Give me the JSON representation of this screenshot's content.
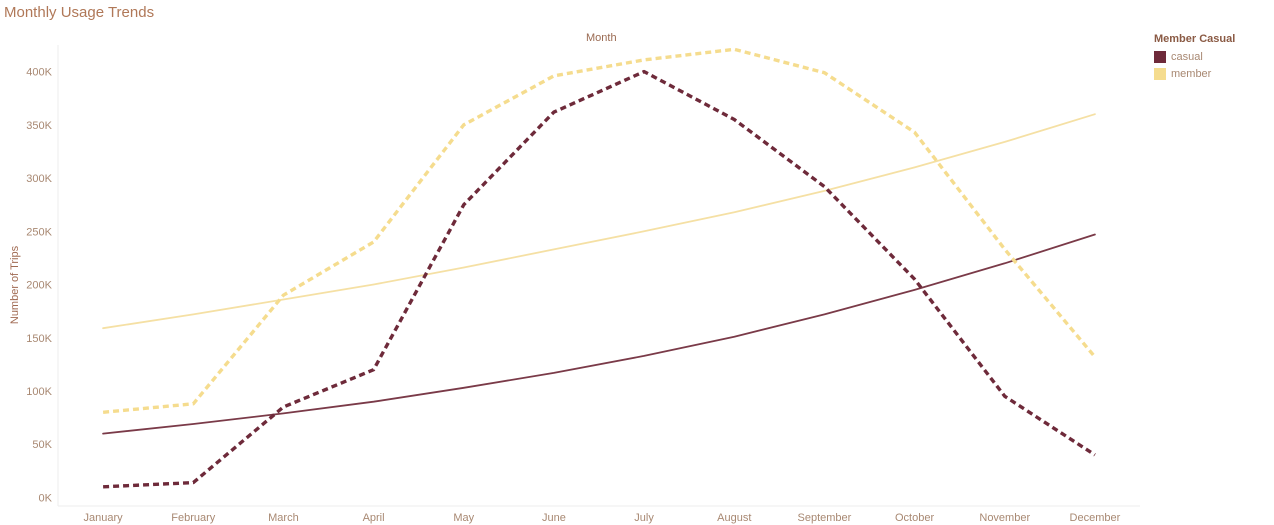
{
  "header": {
    "title": "Monthly Usage Trends"
  },
  "legend": {
    "title": "Member Casual",
    "items": [
      {
        "label": "casual",
        "color": "#6e2a3a"
      },
      {
        "label": "member",
        "color": "#f5dc8e"
      }
    ]
  },
  "chart_data": {
    "type": "line",
    "title": "Monthly Usage Trends",
    "column_header": "Month",
    "xlabel": "",
    "ylabel": "Number of Trips",
    "categories": [
      "January",
      "February",
      "March",
      "April",
      "May",
      "June",
      "July",
      "August",
      "September",
      "October",
      "November",
      "December"
    ],
    "yticks": [
      0,
      50000,
      100000,
      150000,
      200000,
      250000,
      300000,
      350000,
      400000
    ],
    "ytick_labels": [
      "0K",
      "50K",
      "100K",
      "150K",
      "200K",
      "250K",
      "300K",
      "350K",
      "400K"
    ],
    "ylim": [
      -8000,
      425000
    ],
    "grid": false,
    "legend_position": "top-right",
    "series": [
      {
        "name": "casual",
        "color": "#6e2a3a",
        "style": "dashed",
        "values": [
          10000,
          14000,
          85000,
          120000,
          275000,
          362000,
          400000,
          355000,
          292000,
          205000,
          95000,
          40000
        ]
      },
      {
        "name": "member",
        "color": "#f5dc8e",
        "style": "dashed",
        "values": [
          80000,
          88000,
          190000,
          240000,
          350000,
          396000,
          411000,
          421000,
          399000,
          343000,
          233000,
          132000
        ]
      }
    ],
    "trend_lines": [
      {
        "series": "casual",
        "color": "#7a3a48",
        "style": "solid",
        "values": [
          60000,
          69000,
          79000,
          90000,
          103000,
          117000,
          133000,
          151000,
          172000,
          195000,
          220000,
          247000
        ]
      },
      {
        "series": "member",
        "color": "#f5e0a4",
        "style": "solid",
        "values": [
          159000,
          172000,
          186000,
          200000,
          216000,
          233000,
          250000,
          268000,
          288000,
          310000,
          334000,
          360000
        ]
      }
    ]
  }
}
